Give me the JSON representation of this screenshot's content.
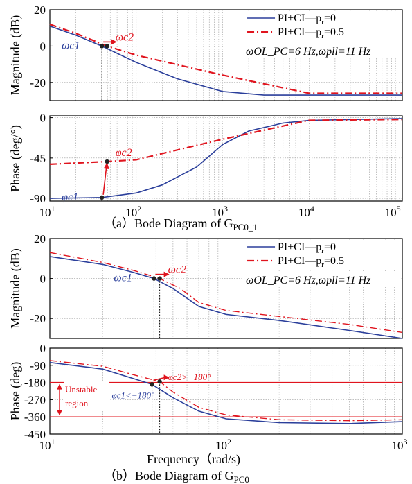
{
  "figure": {
    "caption_a": "（a）Bode Diagram of G",
    "caption_a_sub": "PC0_1",
    "caption_b": "（b）Bode Diagram of G",
    "caption_b_sub": "PC0",
    "xlabel_b": "Frequency（rad/s)"
  },
  "colors": {
    "pi_ci_pr0": "#2b3f9b",
    "pi_ci_pr05": "#e0141e",
    "unstable": "#e0141e"
  },
  "chart_data": [
    {
      "type": "line",
      "panel": "a-magnitude",
      "ylabel": "Magnitude (dB)",
      "xscale": "log",
      "xlim": [
        10,
        120000
      ],
      "ylim": [
        -30,
        20
      ],
      "yticks": [
        20,
        0,
        -20
      ],
      "grid": true,
      "legend_position": "top-right",
      "annotation": "ωOL_PC=6 Hz,ωpll=11 Hz",
      "series": [
        {
          "name": "PI+CI—pr=0",
          "x": [
            10,
            20,
            40,
            100,
            300,
            1000,
            3000,
            10000,
            120000
          ],
          "y": [
            11,
            6,
            0,
            -9,
            -18,
            -25,
            -27,
            -27,
            -27
          ]
        },
        {
          "name": "PI+CI—pr=0.5",
          "x": [
            10,
            20,
            46,
            100,
            1000,
            10000,
            120000
          ],
          "y": [
            12,
            7,
            0,
            -5,
            -16,
            -26,
            -26
          ]
        }
      ],
      "markers": [
        {
          "label": "ωc1",
          "x": 40,
          "y": 0
        },
        {
          "label": "ωc2",
          "x": 46,
          "y": 0
        }
      ]
    },
    {
      "type": "line",
      "panel": "a-phase",
      "ylabel": "Phase (deg/°)",
      "xscale": "log",
      "xlim": [
        10,
        120000
      ],
      "ylim": [
        -93,
        2
      ],
      "yticks": [
        0,
        -45,
        -90
      ],
      "xticks": [
        "10^1",
        "10^2",
        "10^3",
        "10^4",
        "10^5"
      ],
      "grid": true,
      "series": [
        {
          "name": "PI+CI—pr=0",
          "x": [
            10,
            40,
            100,
            200,
            500,
            1000,
            2000,
            5000,
            10000,
            120000
          ],
          "y": [
            -90,
            -89,
            -84,
            -75,
            -55,
            -30,
            -15,
            -6,
            -3,
            -1
          ]
        },
        {
          "name": "PI+CI—pr=0.5",
          "x": [
            10,
            46,
            100,
            1000,
            10000,
            120000
          ],
          "y": [
            -52,
            -49,
            -47,
            -24,
            -3,
            -2
          ]
        }
      ],
      "markers": [
        {
          "label": "φc1",
          "x": 40,
          "y": -89
        },
        {
          "label": "φc2",
          "x": 46,
          "y": -49
        }
      ]
    },
    {
      "type": "line",
      "panel": "b-magnitude",
      "ylabel": "Magnitude (dB)",
      "xscale": "log",
      "xlim": [
        10,
        1000
      ],
      "ylim": [
        -30,
        20
      ],
      "yticks": [
        20,
        0,
        -20
      ],
      "grid": true,
      "legend_position": "top-right",
      "annotation": "ωOL_PC=6 Hz,ωpll=11 Hz",
      "series": [
        {
          "name": "PI+CI—pr=0",
          "x": [
            10,
            20,
            30,
            39,
            50,
            70,
            100,
            200,
            500,
            1000
          ],
          "y": [
            11,
            7,
            3,
            0,
            -5,
            -14,
            -18,
            -21,
            -26,
            -30
          ]
        },
        {
          "name": "PI+CI—pr=0.5",
          "x": [
            10,
            20,
            30,
            42,
            55,
            70,
            100,
            200,
            500,
            1000
          ],
          "y": [
            13,
            8,
            4,
            0,
            -5,
            -12,
            -16,
            -19,
            -23,
            -27
          ]
        }
      ],
      "markers": [
        {
          "label": "ωc1",
          "x": 39,
          "y": 0
        },
        {
          "label": "ωc2",
          "x": 42,
          "y": 0
        }
      ]
    },
    {
      "type": "line",
      "panel": "b-phase",
      "ylabel": "Phase (deg)",
      "xscale": "log",
      "xlim": [
        10,
        1000
      ],
      "ylim": [
        -450,
        0
      ],
      "yticks": [
        0,
        -90,
        -180,
        -270,
        -360,
        -450
      ],
      "xticks": [
        "10^1",
        "10^2",
        "10^3"
      ],
      "grid": true,
      "hlines": [
        -180,
        -360
      ],
      "region_label": "Unstable region",
      "series": [
        {
          "name": "PI+CI—pr=0",
          "x": [
            10,
            20,
            30,
            38,
            50,
            70,
            100,
            200,
            500,
            1000
          ],
          "y": [
            -75,
            -110,
            -160,
            -190,
            -260,
            -330,
            -370,
            -390,
            -395,
            -385
          ]
        },
        {
          "name": "PI+CI—pr=0.5",
          "x": [
            10,
            20,
            30,
            42,
            50,
            70,
            100,
            200,
            500,
            1000
          ],
          "y": [
            -65,
            -95,
            -140,
            -175,
            -230,
            -310,
            -350,
            -375,
            -380,
            -375
          ]
        }
      ],
      "markers": [
        {
          "label": "φc1<−180°",
          "x": 38,
          "y": -190
        },
        {
          "label": "φc2>−180°",
          "x": 42,
          "y": -175
        }
      ]
    }
  ]
}
